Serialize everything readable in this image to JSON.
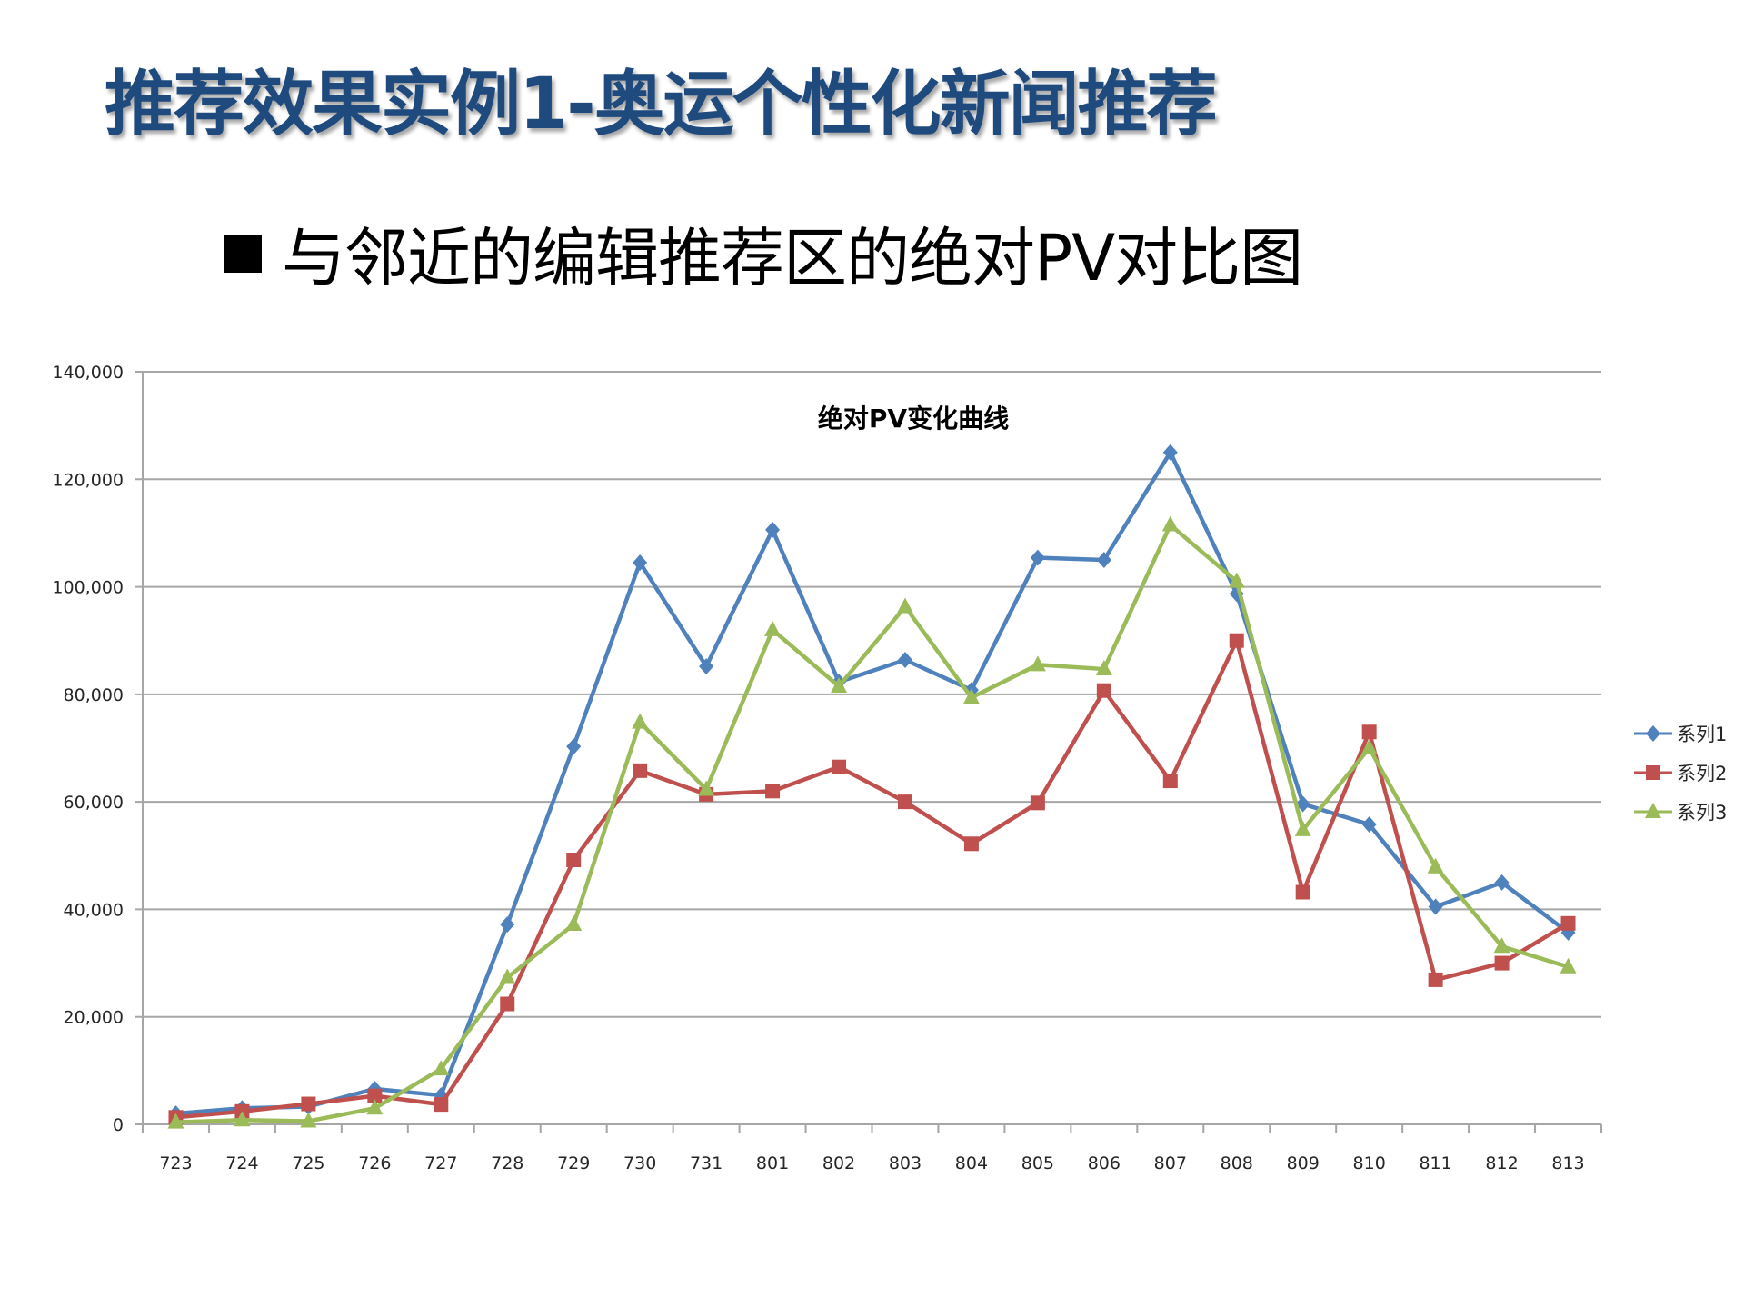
{
  "slide": {
    "title": "推荐效果实例1-奥运个性化新闻推荐",
    "bullet": "与邻近的编辑推荐区的绝对PV对比图"
  },
  "colors": {
    "title": "#1F4A7D",
    "series1": "#4F81BD",
    "series2": "#C0504D",
    "series3": "#9BBB59",
    "gridline": "#A6A6A6"
  },
  "chart_data": {
    "type": "line",
    "title": "绝对PV变化曲线",
    "xlabel": "",
    "ylabel": "",
    "ylim": [
      0,
      140000
    ],
    "yticks": [
      0,
      20000,
      40000,
      60000,
      80000,
      100000,
      120000,
      140000
    ],
    "ytick_labels": [
      "0",
      "20,000",
      "40,000",
      "60,000",
      "80,000",
      "100,000",
      "120,000",
      "140,000"
    ],
    "grid": true,
    "legend_position": "right",
    "categories": [
      "723",
      "724",
      "725",
      "726",
      "727",
      "728",
      "729",
      "730",
      "731",
      "801",
      "802",
      "803",
      "804",
      "805",
      "806",
      "807",
      "808",
      "809",
      "810",
      "811",
      "812",
      "813"
    ],
    "series": [
      {
        "name": "系列1",
        "marker": "diamond",
        "values": [
          2000,
          3000,
          3300,
          6600,
          5400,
          37200,
          70300,
          104500,
          85200,
          110600,
          82300,
          86400,
          80800,
          105400,
          105000,
          125000,
          98700,
          59600,
          55800,
          40500,
          45000,
          35700
        ]
      },
      {
        "name": "系列2",
        "marker": "square",
        "values": [
          1300,
          2400,
          3800,
          5300,
          3700,
          22400,
          49200,
          65800,
          61400,
          62000,
          66500,
          60000,
          52200,
          59800,
          80700,
          63900,
          90000,
          43200,
          73000,
          26900,
          30000,
          37400
        ]
      },
      {
        "name": "系列3",
        "marker": "triangle",
        "values": [
          400,
          800,
          600,
          3000,
          10300,
          27300,
          37200,
          74800,
          62300,
          92000,
          81500,
          96300,
          79400,
          85500,
          84700,
          111500,
          101000,
          54800,
          70000,
          47900,
          33100,
          29300
        ]
      }
    ]
  }
}
